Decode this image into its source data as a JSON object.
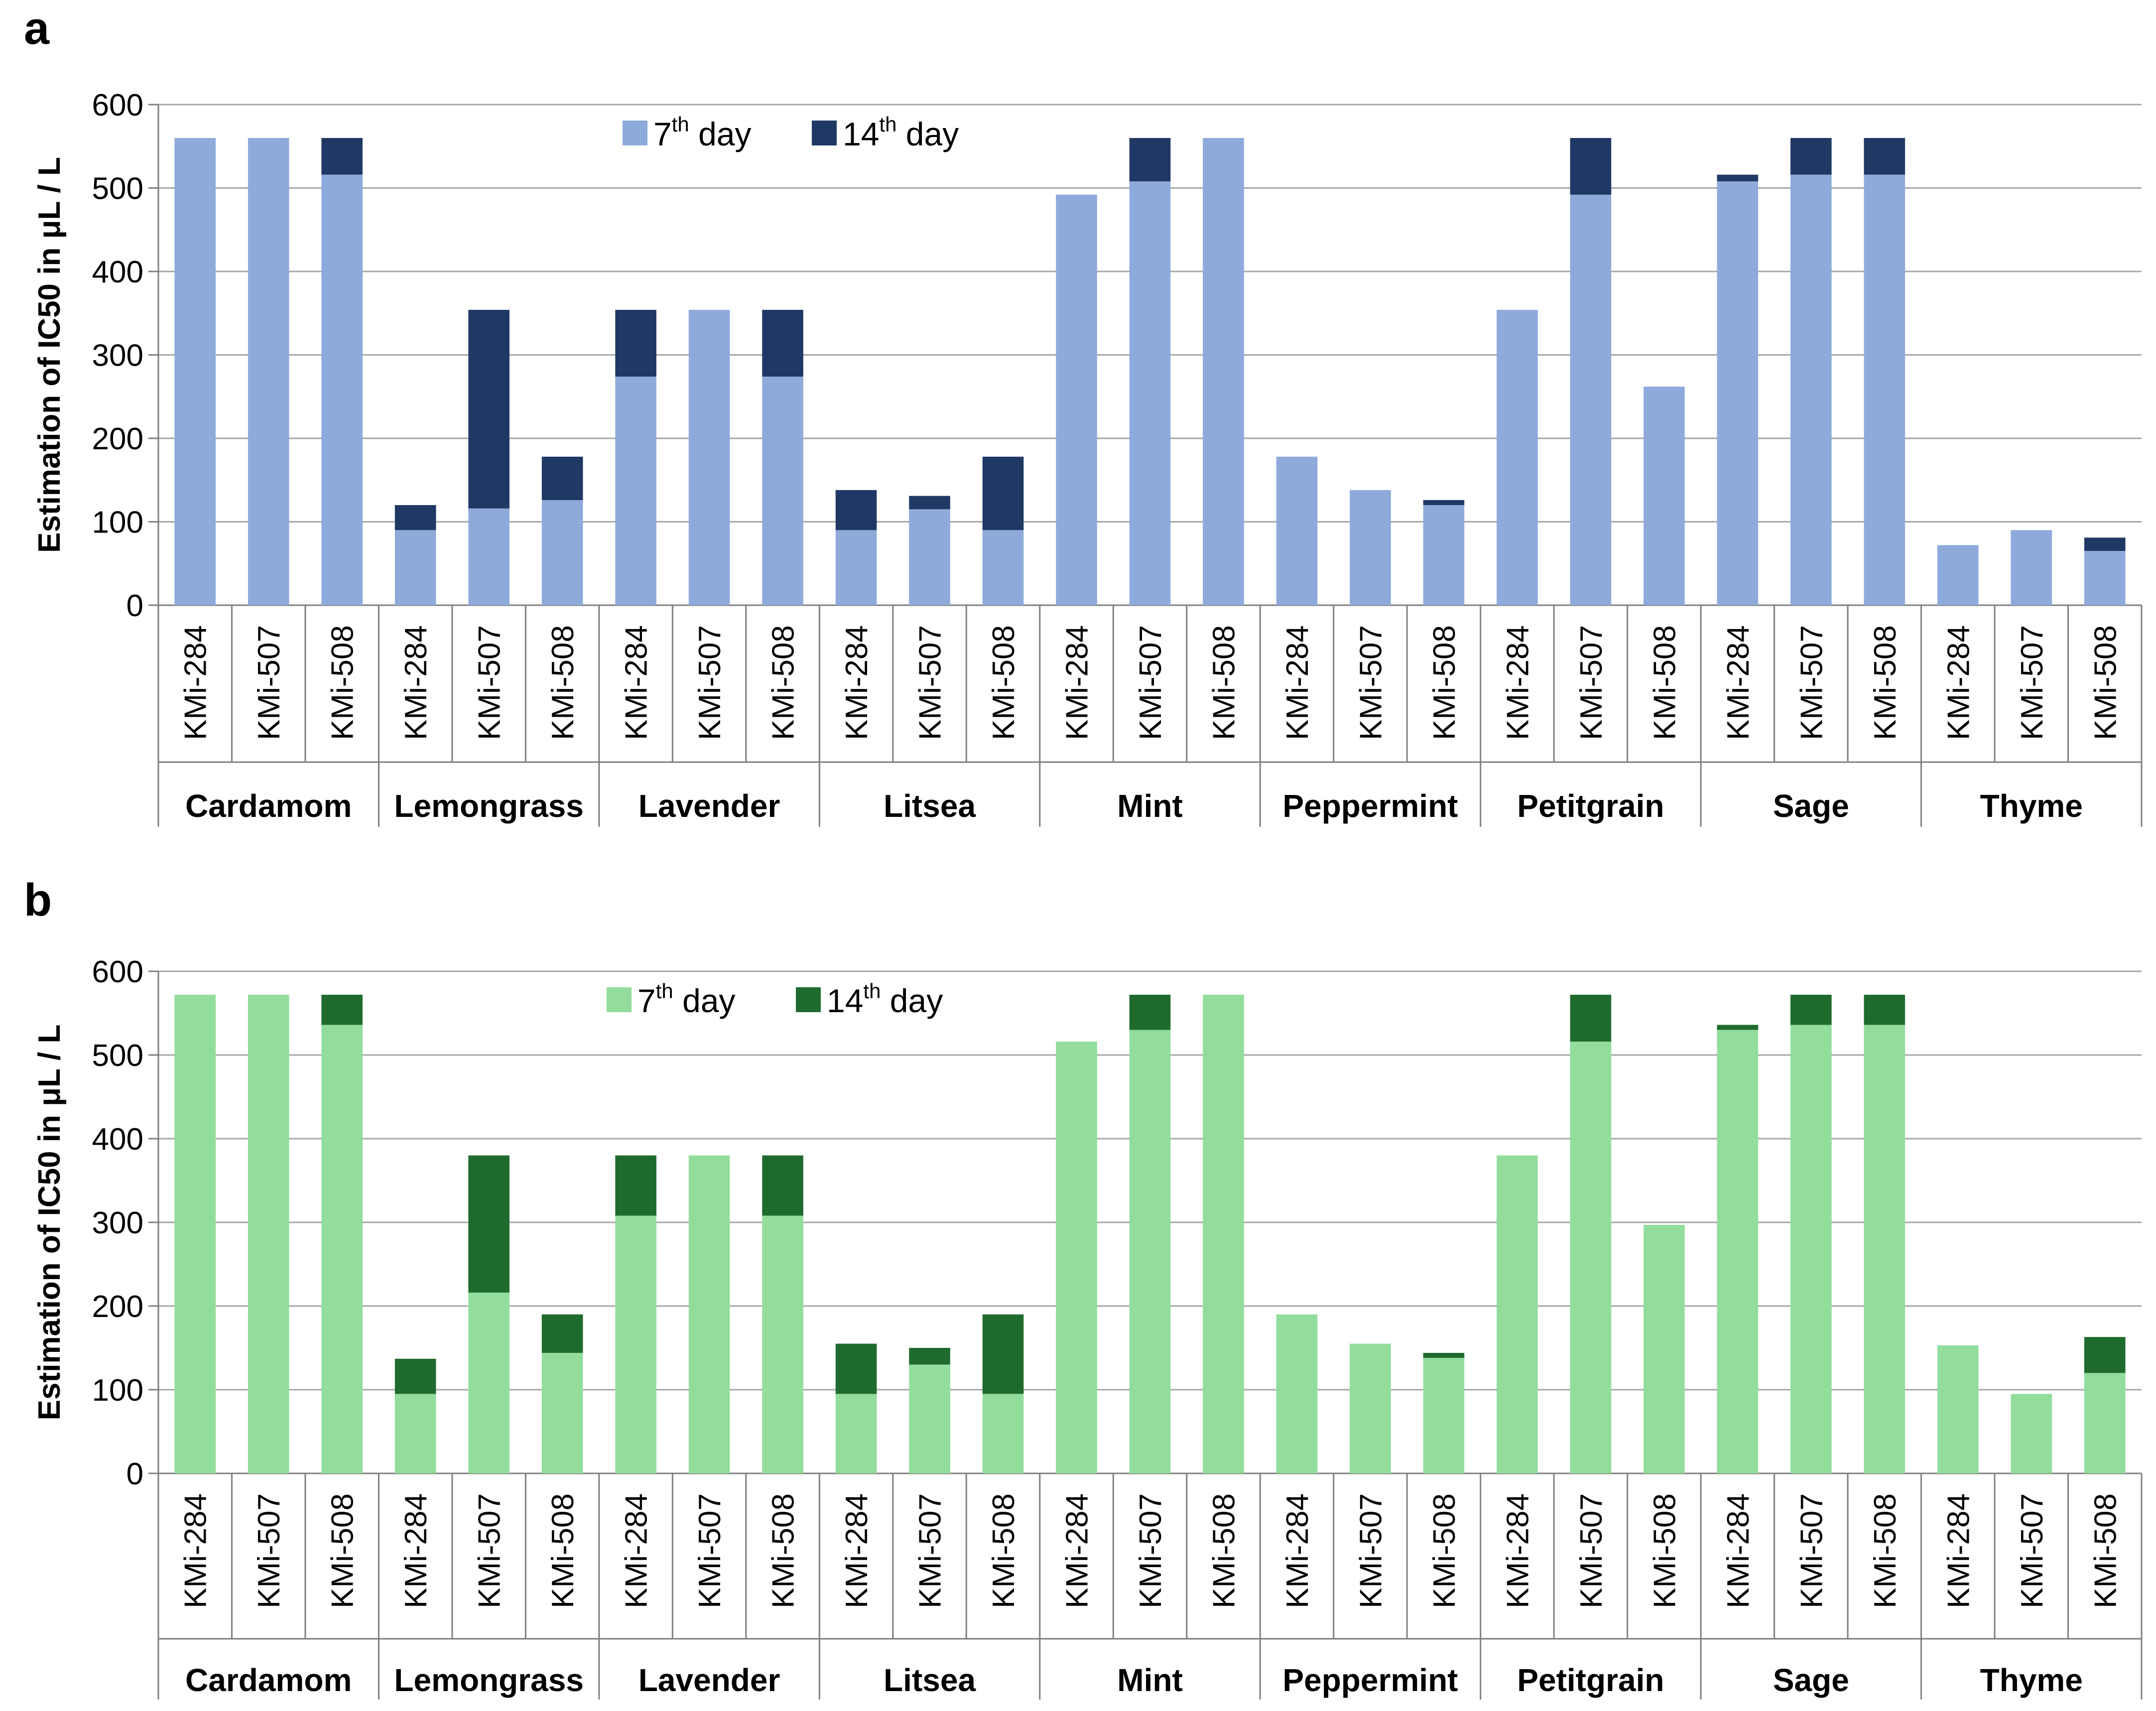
{
  "chart_data": [
    {
      "panel": "a",
      "type": "bar",
      "stacked": true,
      "ylabel": "Estimation of IC50 in μL / L",
      "ylim": [
        0,
        600
      ],
      "yticks": [
        0,
        100,
        200,
        300,
        400,
        500,
        600
      ],
      "grid": true,
      "legend_position": "top-center",
      "groups": [
        "Cardamom",
        "Lemongrass",
        "Lavender",
        "Litsea",
        "Mint",
        "Peppermint",
        "Petitgrain",
        "Sage",
        "Thyme"
      ],
      "strains": [
        "KMi-284",
        "KMi-507",
        "KMi-508"
      ],
      "series": [
        {
          "name": "7",
          "sup": "th",
          "suffix": " day",
          "color": "#8eaadb",
          "values": [
            560,
            560,
            516,
            90,
            116,
            126,
            274,
            354,
            274,
            90,
            115,
            90,
            492,
            508,
            560,
            178,
            138,
            120,
            354,
            492,
            262,
            508,
            516,
            516,
            72,
            90,
            65
          ]
        },
        {
          "name": "14",
          "sup": "th",
          "suffix": " day",
          "color": "#203864",
          "values": [
            0,
            0,
            44,
            30,
            238,
            52,
            80,
            0,
            80,
            48,
            16,
            88,
            0,
            52,
            0,
            0,
            0,
            6,
            0,
            68,
            0,
            8,
            44,
            44,
            0,
            0,
            16
          ]
        }
      ]
    },
    {
      "panel": "b",
      "type": "bar",
      "stacked": true,
      "ylabel": "Estimation of IC50 in μL / L",
      "ylim": [
        0,
        600
      ],
      "yticks": [
        0,
        100,
        200,
        300,
        400,
        500,
        600
      ],
      "grid": true,
      "legend_position": "top-center",
      "groups": [
        "Cardamom",
        "Lemongrass",
        "Lavender",
        "Litsea",
        "Mint",
        "Peppermint",
        "Petitgrain",
        "Sage",
        "Thyme"
      ],
      "strains": [
        "KMi-284",
        "KMi-507",
        "KMi-508"
      ],
      "series": [
        {
          "name": "7",
          "sup": "th",
          "suffix": " day",
          "color": "#92dd9b",
          "values": [
            572,
            572,
            536,
            95,
            216,
            144,
            308,
            380,
            308,
            95,
            130,
            95,
            516,
            530,
            572,
            190,
            155,
            138,
            380,
            516,
            297,
            530,
            536,
            536,
            153,
            95,
            120
          ]
        },
        {
          "name": "14",
          "sup": "th",
          "suffix": " day",
          "color": "#1f6b2e",
          "values": [
            0,
            0,
            36,
            42,
            164,
            46,
            72,
            0,
            72,
            60,
            20,
            95,
            0,
            42,
            0,
            0,
            0,
            6,
            0,
            56,
            0,
            6,
            36,
            36,
            0,
            0,
            43
          ]
        }
      ]
    }
  ]
}
